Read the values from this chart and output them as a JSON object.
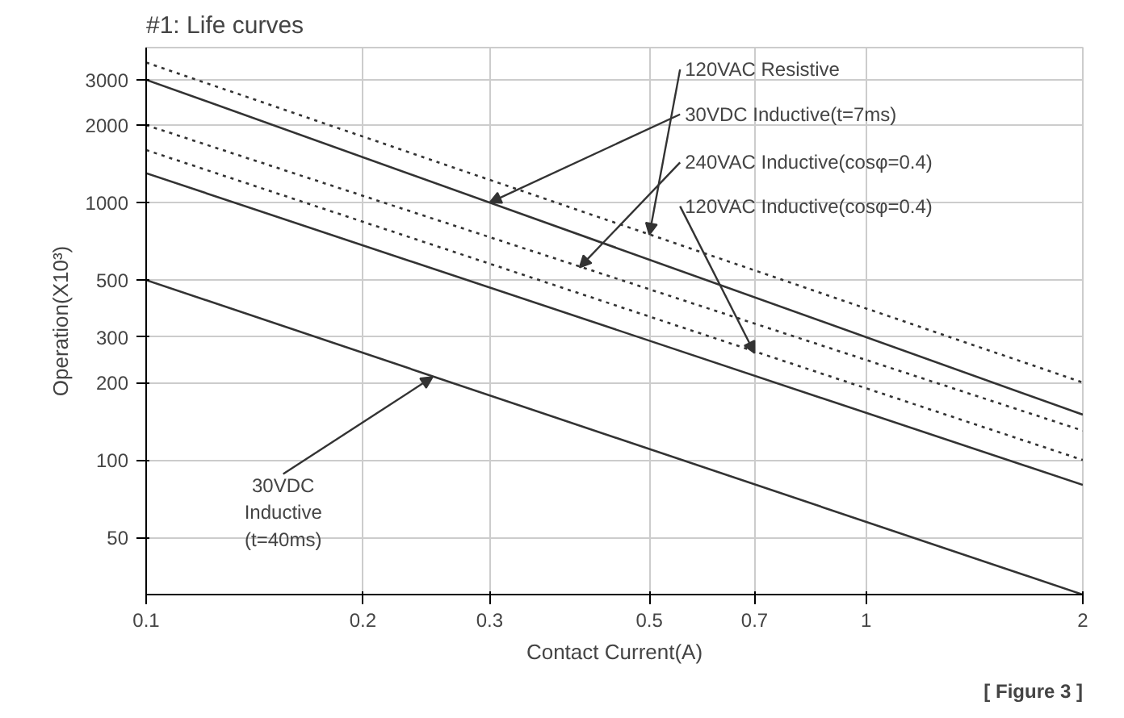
{
  "chart_data": {
    "type": "line",
    "title": "#1: Life curves",
    "xlabel": "Contact Current(A)",
    "ylabel": "Operation(X10³)",
    "x": [
      0.1,
      2
    ],
    "log": "xy",
    "grid": true,
    "marker": "none",
    "xlim": [
      0.1,
      2
    ],
    "xticks": [
      0.1,
      0.2,
      0.3,
      0.5,
      0.7,
      1,
      2
    ],
    "ylim": [
      30,
      4000
    ],
    "yticks": [
      50,
      100,
      200,
      300,
      500,
      1000,
      2000,
      3000
    ],
    "series": [
      {
        "color": "#333333",
        "line_style": "dotted",
        "values": [
          3500,
          200
        ]
      },
      {
        "color": "#333333",
        "line_style": "solid",
        "values": [
          3000,
          150
        ]
      },
      {
        "color": "#333333",
        "line_style": "dotted",
        "values": [
          2000,
          130
        ]
      },
      {
        "color": "#333333",
        "line_style": "dotted",
        "values": [
          1600,
          100
        ]
      },
      {
        "color": "#333333",
        "line_style": "solid",
        "values": [
          1300,
          80
        ]
      },
      {
        "color": "#333333",
        "line_style": "solid",
        "values": [
          500,
          30
        ]
      }
    ],
    "annotations": [
      {
        "text": "120VAC Resistive",
        "x": 0.5,
        "y": 750
      },
      {
        "text": "30VDC Inductive(t=7ms)",
        "x": 0.3,
        "y": 1000
      },
      {
        "text": "240VAC Inductive(cosφ=0.4)",
        "x": 0.4,
        "y": 560
      },
      {
        "text": "120VAC Inductive(cosφ=0.4)",
        "x": 0.7,
        "y": 260
      },
      {
        "text": "30VDC\nInductive\n(t=40ms)",
        "x": 0.25,
        "y": 210
      },
      "[ Figure 3 ]"
    ]
  }
}
